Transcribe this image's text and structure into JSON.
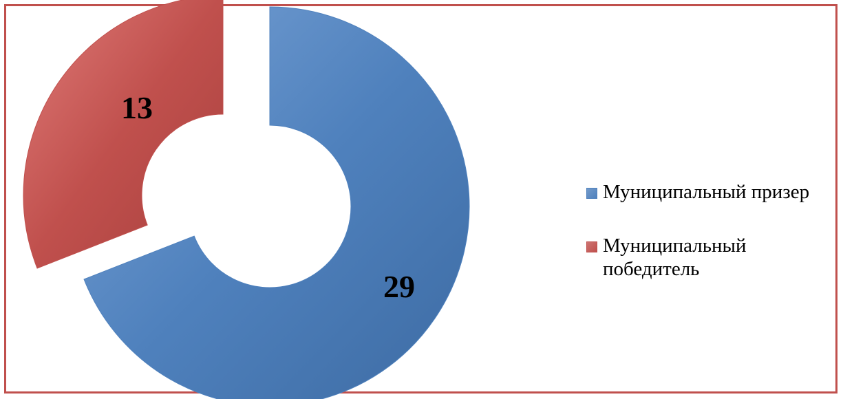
{
  "chart_data": {
    "type": "pie",
    "variant": "doughnut",
    "exploded": true,
    "categories": [
      "Муниципальный призер",
      "Муниципальный победитель"
    ],
    "values": [
      29,
      13
    ],
    "colors": [
      "#4f81bd",
      "#c0504d"
    ],
    "data_labels": [
      "29",
      "13"
    ],
    "legend_position": "right",
    "title": ""
  },
  "legend": {
    "items": [
      {
        "label": "Муниципальный призер",
        "color": "#4f81bd"
      },
      {
        "label": "Муниципальный победитель",
        "color": "#c0504d"
      }
    ]
  },
  "frame_color": "#c0504d"
}
